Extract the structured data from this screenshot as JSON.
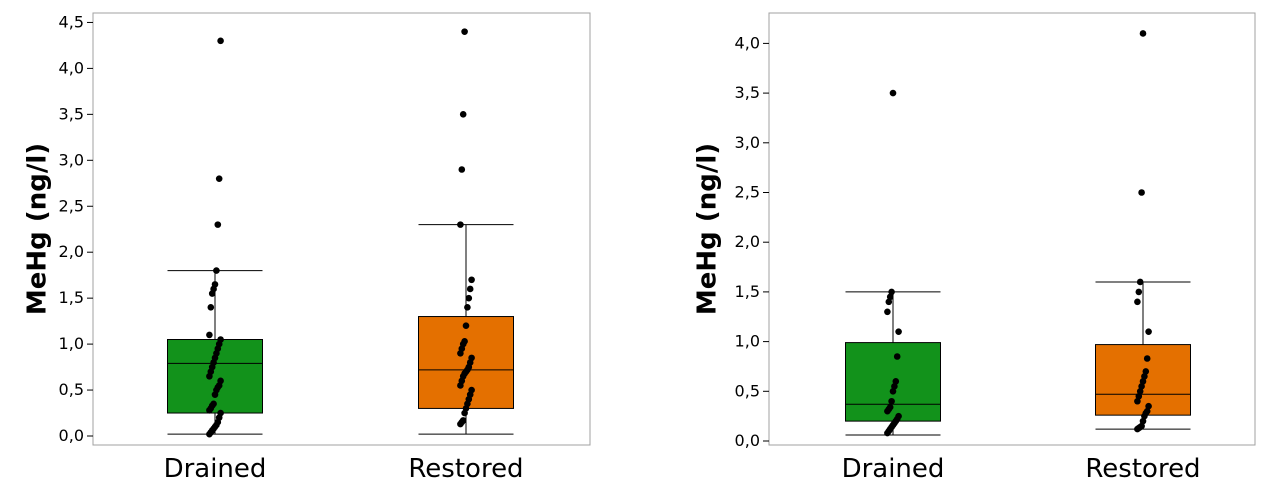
{
  "chart_data": [
    {
      "type": "boxplot",
      "ylabel": "MeHg (ng/l)",
      "categories": [
        "Drained",
        "Restored"
      ],
      "ylim": [
        0,
        4.5
      ],
      "yticks": [
        "0,0",
        "0,5",
        "1,0",
        "1,5",
        "2,0",
        "2,5",
        "3,0",
        "3,5",
        "4,0",
        "4,5"
      ],
      "grid": false,
      "boxes": [
        {
          "category": "Drained",
          "color": "#12921b",
          "whisker_low": 0.02,
          "q1": 0.25,
          "median": 0.79,
          "q3": 1.05,
          "whisker_high": 1.8,
          "points": [
            0.02,
            0.04,
            0.06,
            0.08,
            0.1,
            0.12,
            0.15,
            0.2,
            0.25,
            0.28,
            0.3,
            0.33,
            0.35,
            0.45,
            0.5,
            0.53,
            0.55,
            0.6,
            0.65,
            0.7,
            0.75,
            0.8,
            0.85,
            0.9,
            0.95,
            1.0,
            1.05,
            1.1,
            1.4,
            1.55,
            1.6,
            1.65,
            1.8,
            2.3,
            2.8,
            4.3
          ]
        },
        {
          "category": "Restored",
          "color": "#e47000",
          "whisker_low": 0.02,
          "q1": 0.3,
          "median": 0.72,
          "q3": 1.3,
          "whisker_high": 2.3,
          "points": [
            0.13,
            0.15,
            0.17,
            0.25,
            0.3,
            0.35,
            0.4,
            0.45,
            0.5,
            0.55,
            0.6,
            0.65,
            0.68,
            0.7,
            0.72,
            0.75,
            0.8,
            0.85,
            0.9,
            0.95,
            1.0,
            1.03,
            1.2,
            1.4,
            1.5,
            1.6,
            1.7,
            2.3,
            2.9,
            3.5,
            4.4
          ]
        }
      ]
    },
    {
      "type": "boxplot",
      "ylabel": "MeHg (ng/l)",
      "categories": [
        "Drained",
        "Restored"
      ],
      "ylim": [
        0,
        4.2
      ],
      "yticks": [
        "0,0",
        "0,5",
        "1,0",
        "1,5",
        "2,0",
        "2,5",
        "3,0",
        "3,5",
        "4,0"
      ],
      "grid": false,
      "boxes": [
        {
          "category": "Drained",
          "color": "#12921b",
          "whisker_low": 0.06,
          "q1": 0.2,
          "median": 0.37,
          "q3": 0.99,
          "whisker_high": 1.5,
          "points": [
            0.08,
            0.1,
            0.12,
            0.14,
            0.16,
            0.18,
            0.2,
            0.22,
            0.25,
            0.3,
            0.32,
            0.34,
            0.4,
            0.5,
            0.55,
            0.6,
            0.85,
            1.1,
            1.3,
            1.4,
            1.45,
            1.5,
            3.5
          ]
        },
        {
          "category": "Restored",
          "color": "#e47000",
          "whisker_low": 0.12,
          "q1": 0.26,
          "median": 0.47,
          "q3": 0.97,
          "whisker_high": 1.6,
          "points": [
            0.12,
            0.13,
            0.14,
            0.15,
            0.2,
            0.25,
            0.28,
            0.3,
            0.35,
            0.4,
            0.45,
            0.5,
            0.55,
            0.6,
            0.65,
            0.7,
            0.83,
            1.1,
            1.4,
            1.5,
            1.6,
            2.5,
            4.1
          ]
        }
      ]
    }
  ]
}
